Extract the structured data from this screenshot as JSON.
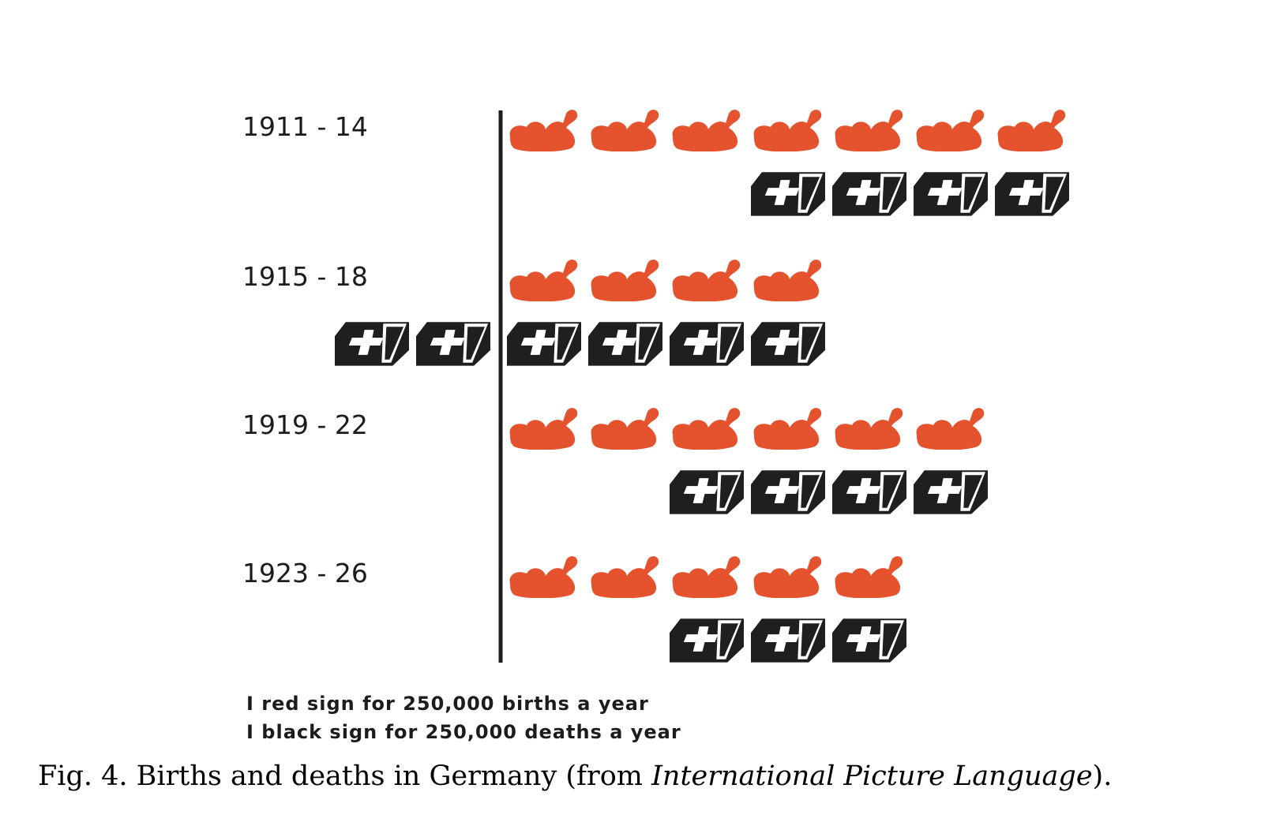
{
  "chart_data": {
    "type": "isotype",
    "title": "",
    "unit_value": 250000,
    "categories": [
      "1911 - 14",
      "1915 - 18",
      "1919 - 22",
      "1923 - 26"
    ],
    "series": [
      {
        "name": "births",
        "color": "#e4532e",
        "icon": "baby-icon",
        "values": [
          7,
          4,
          6,
          5
        ]
      },
      {
        "name": "deaths",
        "color": "#1f1f1f",
        "icon": "coffin-icon",
        "values": [
          4,
          6,
          4,
          3
        ]
      }
    ],
    "legend": {
      "placement": "bottom-left",
      "lines": [
        "I red sign for 250,000 births a year",
        "I black sign for 250,000 deaths a year"
      ]
    }
  },
  "caption": {
    "prefix": "Fig. 4. Births and deaths in Germany (from ",
    "italic": "International Picture Language",
    "suffix": ")."
  },
  "colors": {
    "birth": "#e4532e",
    "death": "#1f1f1f",
    "axis": "#1c1c1c"
  }
}
